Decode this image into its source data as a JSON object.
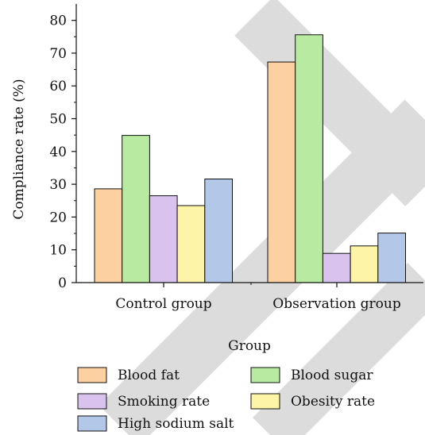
{
  "chart_data": {
    "type": "bar",
    "title": "",
    "xlabel": "Group",
    "ylabel": "Compliance rate (%)",
    "ylim": [
      0,
      85
    ],
    "yticks": [
      0,
      10,
      20,
      30,
      40,
      50,
      60,
      70,
      80
    ],
    "categories": [
      "Control group",
      "Observation group"
    ],
    "grid": false,
    "legend_position": "bottom",
    "series": [
      {
        "name": "Blood fat",
        "color": "#fdd0a2",
        "values": [
          28.6,
          67.3
        ]
      },
      {
        "name": "Blood sugar",
        "color": "#b8eaa1",
        "values": [
          44.9,
          75.6
        ]
      },
      {
        "name": "Smoking rate",
        "color": "#d9c2ee",
        "values": [
          26.5,
          8.9
        ]
      },
      {
        "name": "Obesity rate",
        "color": "#fdf4a8",
        "values": [
          23.5,
          11.2
        ]
      },
      {
        "name": "High sodium salt",
        "color": "#b3c7e8",
        "values": [
          31.6,
          15.1
        ]
      }
    ]
  },
  "watermark_color": "#dcdcdc"
}
